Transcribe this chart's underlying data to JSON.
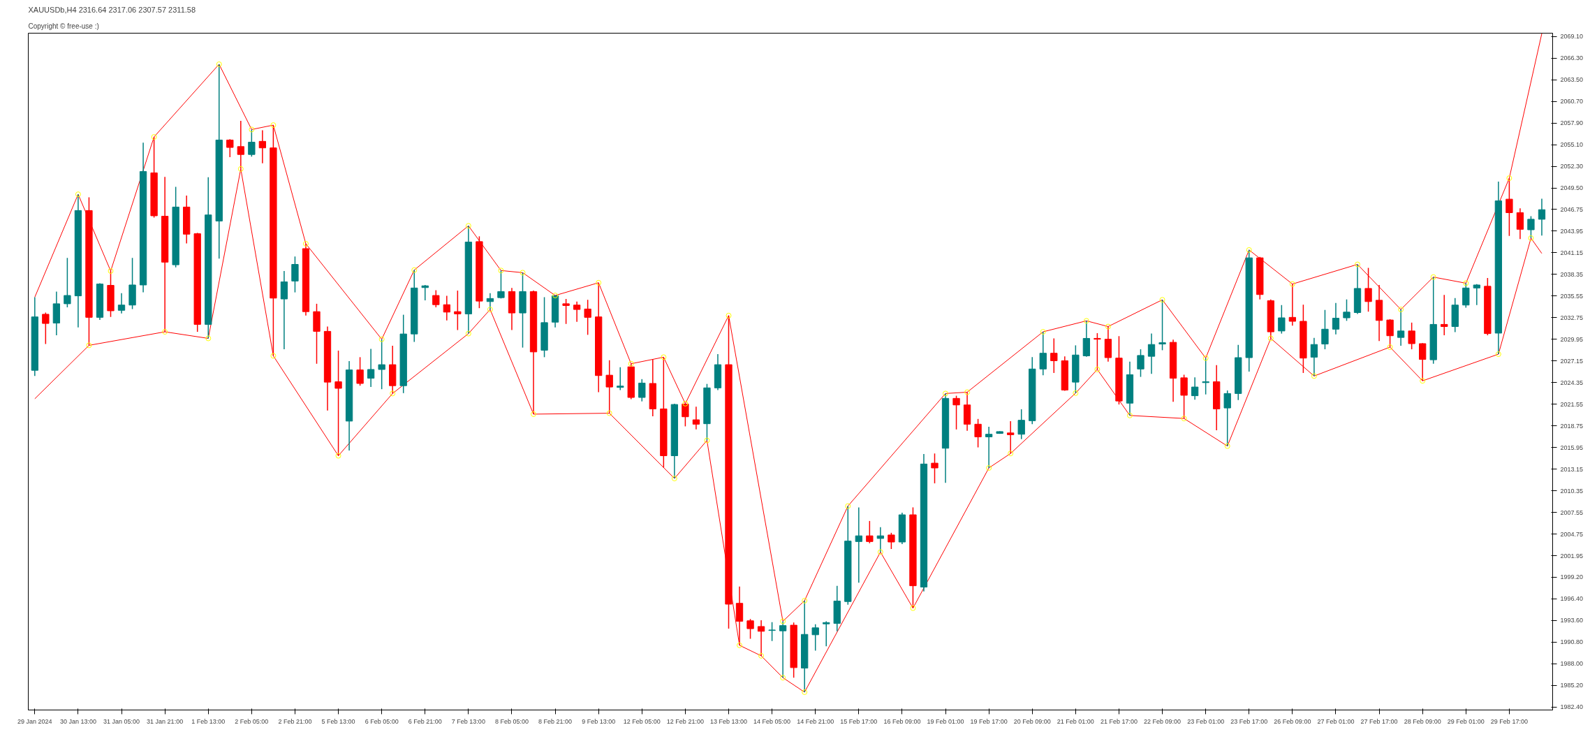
{
  "chart_data": {
    "type": "candlestick",
    "title": "XAUUSDb,H4 2316.64 2317.06 2307.57 2311.58",
    "subtitle": "Copyright © free-use :)",
    "categories": [
      "29 Jan 2024",
      null,
      null,
      null,
      "30 Jan 13:00",
      null,
      null,
      null,
      "31 Jan 05:00",
      null,
      null,
      null,
      "31 Jan 21:00",
      null,
      null,
      null,
      "1 Feb 13:00",
      null,
      null,
      null,
      "2 Feb 05:00",
      null,
      null,
      null,
      "2 Feb 21:00",
      null,
      null,
      null,
      "5 Feb 13:00",
      null,
      null,
      null,
      "6 Feb 05:00",
      null,
      null,
      null,
      "6 Feb 21:00",
      null,
      null,
      null,
      "7 Feb 13:00",
      null,
      null,
      null,
      "8 Feb 05:00",
      null,
      null,
      null,
      "8 Feb 21:00",
      null,
      null,
      null,
      "9 Feb 13:00",
      null,
      null,
      null,
      "12 Feb 05:00",
      null,
      null,
      null,
      "12 Feb 21:00",
      null,
      null,
      null,
      "13 Feb 13:00",
      null,
      null,
      null,
      "14 Feb 05:00",
      null,
      null,
      null,
      "14 Feb 21:00",
      null,
      null,
      null,
      "15 Feb 17:00",
      null,
      null,
      null,
      "16 Feb 09:00",
      null,
      null,
      null,
      "19 Feb 01:00",
      null,
      null,
      null,
      "19 Feb 17:00",
      null,
      null,
      null,
      "20 Feb 09:00",
      null,
      null,
      null,
      "21 Feb 01:00",
      null,
      null,
      null,
      "21 Feb 17:00",
      null,
      null,
      null,
      "22 Feb 09:00",
      null,
      null,
      null,
      "23 Feb 01:00",
      null,
      null,
      null,
      "23 Feb 17:00",
      null,
      null,
      null,
      "26 Feb 09:00",
      null,
      null,
      null,
      "27 Feb 01:00",
      null,
      null,
      null,
      "27 Feb 17:00",
      null,
      null,
      null,
      "28 Feb 09:00",
      null,
      null,
      null,
      "29 Feb 01:00",
      null,
      null,
      null,
      "29 Feb 17:00",
      null,
      null,
      null
    ],
    "ohlc": [
      [
        2025.94,
        2035.4,
        2025.2,
        2032.85
      ],
      [
        2033.19,
        2033.41,
        2029.34,
        2032.0
      ],
      [
        2032.05,
        2036.13,
        2030.47,
        2034.55
      ],
      [
        2034.55,
        2040.49,
        2034.09,
        2035.62
      ],
      [
        2035.57,
        2048.71,
        2031.49,
        2046.61
      ],
      [
        2046.61,
        2048.31,
        2029.17,
        2032.79
      ],
      [
        2032.79,
        2037.21,
        2032.45,
        2037.1
      ],
      [
        2036.93,
        2038.79,
        2032.85,
        2033.64
      ],
      [
        2033.7,
        2035.91,
        2033.3,
        2034.38
      ],
      [
        2034.38,
        2040.49,
        2033.87,
        2036.98
      ],
      [
        2036.98,
        2055.39,
        2036.02,
        2051.65
      ],
      [
        2051.48,
        2056.13,
        2045.7,
        2045.93
      ],
      [
        2045.87,
        2050.97,
        2030.92,
        2039.93
      ],
      [
        2039.59,
        2049.67,
        2039.25,
        2047.06
      ],
      [
        2047.06,
        2048.54,
        2042.36,
        2043.55
      ],
      [
        2043.61,
        2043.72,
        2030.92,
        2031.88
      ],
      [
        2031.88,
        2050.92,
        2030.07,
        2046.04
      ],
      [
        2045.25,
        2065.53,
        2040.38,
        2055.73
      ],
      [
        2055.73,
        2055.84,
        2053.52,
        2054.77
      ],
      [
        2054.88,
        2058.22,
        2051.99,
        2053.86
      ],
      [
        2053.86,
        2057.09,
        2053.58,
        2055.45
      ],
      [
        2055.56,
        2056.98,
        2052.73,
        2054.71
      ],
      [
        2054.71,
        2057.66,
        2027.81,
        2035.28
      ],
      [
        2035.17,
        2038.79,
        2028.66,
        2037.38
      ],
      [
        2037.49,
        2040.66,
        2036.02,
        2039.64
      ],
      [
        2041.68,
        2042.31,
        2033.02,
        2033.53
      ],
      [
        2033.53,
        2034.55,
        2026.79,
        2030.98
      ],
      [
        2030.98,
        2031.6,
        2020.73,
        2024.41
      ],
      [
        2024.46,
        2028.49,
        2014.89,
        2023.61
      ],
      [
        2019.37,
        2027.13,
        2015.57,
        2025.99
      ],
      [
        2025.99,
        2027.64,
        2023.95,
        2024.24
      ],
      [
        2024.92,
        2028.71,
        2023.78,
        2026.05
      ],
      [
        2026.05,
        2029.96,
        2023.5,
        2026.67
      ],
      [
        2026.67,
        2029.11,
        2022.94,
        2023.95
      ],
      [
        2023.95,
        2033.13,
        2022.99,
        2030.64
      ],
      [
        2030.64,
        2038.91,
        2029.62,
        2036.59
      ],
      [
        2036.64,
        2036.98,
        2035.0,
        2036.87
      ],
      [
        2035.62,
        2036.3,
        2034.09,
        2034.43
      ],
      [
        2034.43,
        2035.57,
        2032.39,
        2033.47
      ],
      [
        2033.53,
        2036.25,
        2031.15,
        2033.24
      ],
      [
        2033.24,
        2044.63,
        2030.69,
        2042.53
      ],
      [
        2042.59,
        2043.27,
        2033.98,
        2034.89
      ],
      [
        2034.83,
        2035.91,
        2033.81,
        2035.23
      ],
      [
        2035.34,
        2038.85,
        2035.23,
        2036.13
      ],
      [
        2036.13,
        2036.59,
        2031.15,
        2033.36
      ],
      [
        2033.36,
        2038.57,
        2028.88,
        2036.13
      ],
      [
        2036.13,
        2036.25,
        2020.27,
        2028.32
      ],
      [
        2028.54,
        2035.4,
        2027.64,
        2032.11
      ],
      [
        2032.17,
        2035.62,
        2031.49,
        2035.57
      ],
      [
        2034.55,
        2035.17,
        2031.94,
        2034.32
      ],
      [
        2034.38,
        2034.83,
        2032.22,
        2033.81
      ],
      [
        2033.87,
        2035.06,
        2030.53,
        2032.79
      ],
      [
        2032.85,
        2037.27,
        2023.11,
        2025.26
      ],
      [
        2025.31,
        2027.24,
        2020.39,
        2023.78
      ],
      [
        2023.73,
        2026.33,
        2023.39,
        2023.9
      ],
      [
        2026.39,
        2026.79,
        2022.2,
        2022.43
      ],
      [
        2022.43,
        2024.8,
        2021.92,
        2024.29
      ],
      [
        2024.24,
        2027.35,
        2019.99,
        2020.95
      ],
      [
        2020.95,
        2027.64,
        2013.36,
        2014.89
      ],
      [
        2014.89,
        2021.63,
        2011.95,
        2021.52
      ],
      [
        2021.58,
        2021.63,
        2018.69,
        2019.93
      ],
      [
        2019.54,
        2021.24,
        2018.29,
        2018.97
      ],
      [
        2019.03,
        2024.18,
        2016.87,
        2023.67
      ],
      [
        2023.67,
        2028.03,
        2023.39,
        2026.67
      ],
      [
        2026.67,
        2033.02,
        1992.52,
        1995.69
      ],
      [
        1995.8,
        1997.96,
        1990.37,
        1993.48
      ],
      [
        1993.54,
        1993.77,
        1991.22,
        1992.52
      ],
      [
        1992.8,
        1993.6,
        1989.01,
        1992.18
      ],
      [
        1992.29,
        1993.37,
        1990.93,
        1992.35
      ],
      [
        1992.24,
        1993.48,
        1986.18,
        1992.92
      ],
      [
        1992.97,
        1993.31,
        1986.18,
        1987.48
      ],
      [
        1987.42,
        1996.14,
        1984.31,
        1991.78
      ],
      [
        1991.73,
        1993.09,
        1989.69,
        1992.63
      ],
      [
        1993.14,
        1993.48,
        1990.25,
        1993.31
      ],
      [
        1993.2,
        1998.07,
        1992.18,
        1996.09
      ],
      [
        1996.03,
        2008.38,
        1995.63,
        2003.85
      ],
      [
        2003.79,
        2008.21,
        1998.47,
        2004.53
      ],
      [
        2004.53,
        2006.45,
        2003.56,
        2003.79
      ],
      [
        2004.19,
        2005.66,
        2002.43,
        2004.53
      ],
      [
        2004.64,
        2004.92,
        2002.83,
        2003.73
      ],
      [
        2003.73,
        2007.53,
        2003.45,
        2007.25
      ],
      [
        2007.25,
        2008.21,
        1995.18,
        1998.07
      ],
      [
        1997.9,
        2015.12,
        1997.33,
        2013.82
      ],
      [
        2013.93,
        2015.18,
        2011.32,
        2013.31
      ],
      [
        2015.86,
        2022.94,
        2011.38,
        2022.31
      ],
      [
        2022.31,
        2022.65,
        2018.29,
        2021.46
      ],
      [
        2021.46,
        2023.11,
        2018.12,
        2018.97
      ],
      [
        2018.97,
        2019.65,
        2015.97,
        2017.33
      ],
      [
        2017.33,
        2018.63,
        2013.31,
        2017.67
      ],
      [
        2017.78,
        2018.06,
        2017.72,
        2018.01
      ],
      [
        2017.84,
        2019.37,
        2015.18,
        2017.61
      ],
      [
        2017.67,
        2020.9,
        2017.04,
        2019.48
      ],
      [
        2019.42,
        2027.64,
        2018.97,
        2026.11
      ],
      [
        2026.11,
        2030.92,
        2025.31,
        2028.15
      ],
      [
        2028.15,
        2030.07,
        2025.6,
        2027.18
      ],
      [
        2027.18,
        2027.75,
        2023.28,
        2023.39
      ],
      [
        2024.41,
        2029.17,
        2022.99,
        2027.92
      ],
      [
        2027.81,
        2032.34,
        2027.69,
        2030.07
      ],
      [
        2030.07,
        2030.75,
        2026.05,
        2029.96
      ],
      [
        2029.96,
        2031.6,
        2027.07,
        2027.58
      ],
      [
        2027.52,
        2030.36,
        2021.52,
        2021.97
      ],
      [
        2021.69,
        2027.07,
        2020.1,
        2025.37
      ],
      [
        2026.11,
        2028.66,
        2025.09,
        2027.86
      ],
      [
        2027.75,
        2030.69,
        2025.48,
        2029.28
      ],
      [
        2029.34,
        2035.06,
        2028.54,
        2029.51
      ],
      [
        2029.56,
        2029.9,
        2021.86,
        2024.92
      ],
      [
        2024.97,
        2025.37,
        2019.71,
        2022.71
      ],
      [
        2022.65,
        2025.03,
        2022.14,
        2023.78
      ],
      [
        2024.35,
        2027.52,
        2022.82,
        2024.46
      ],
      [
        2024.46,
        2026.62,
        2018.18,
        2020.95
      ],
      [
        2021.07,
        2023.33,
        2016.14,
        2022.94
      ],
      [
        2022.94,
        2029.22,
        2022.09,
        2027.58
      ],
      [
        2027.58,
        2041.51,
        2025.77,
        2040.49
      ],
      [
        2040.49,
        2040.61,
        2035.11,
        2035.74
      ],
      [
        2034.94,
        2035.11,
        2030.07,
        2030.92
      ],
      [
        2031.03,
        2034.38,
        2030.69,
        2032.73
      ],
      [
        2032.79,
        2037.1,
        2031.71,
        2032.28
      ],
      [
        2032.28,
        2034.43,
        2025.6,
        2027.52
      ],
      [
        2027.64,
        2030.13,
        2025.2,
        2029.28
      ],
      [
        2029.34,
        2033.75,
        2028.66,
        2031.26
      ],
      [
        2031.26,
        2034.66,
        2030.58,
        2032.68
      ],
      [
        2032.73,
        2035.11,
        2032.34,
        2033.47
      ],
      [
        2033.41,
        2039.64,
        2033.24,
        2036.53
      ],
      [
        2036.53,
        2039.19,
        2033.53,
        2034.83
      ],
      [
        2035.0,
        2036.98,
        2029.73,
        2032.39
      ],
      [
        2032.45,
        2032.56,
        2028.94,
        2030.41
      ],
      [
        2030.19,
        2033.81,
        2029.11,
        2031.03
      ],
      [
        2031.03,
        2032.11,
        2028.66,
        2029.39
      ],
      [
        2029.39,
        2029.45,
        2024.58,
        2027.35
      ],
      [
        2027.3,
        2038.0,
        2026.79,
        2031.88
      ],
      [
        2031.88,
        2035.68,
        2030.47,
        2031.6
      ],
      [
        2031.6,
        2035.28,
        2030.87,
        2034.38
      ],
      [
        2034.38,
        2037.21,
        2034.04,
        2036.59
      ],
      [
        2036.59,
        2037.1,
        2034.38,
        2036.98
      ],
      [
        2036.81,
        2037.89,
        2030.47,
        2030.69
      ],
      [
        2030.75,
        2050.35,
        2028.03,
        2047.86
      ],
      [
        2048.08,
        2050.8,
        2043.33,
        2046.33
      ],
      [
        2046.33,
        2046.89,
        2042.93,
        2044.18
      ],
      [
        2044.12,
        2045.87,
        2043.04,
        2045.48
      ],
      [
        2045.48,
        2048.14,
        2043.38,
        2046.72
      ]
    ],
    "colors": [
      "#008080",
      "#ff0000",
      "#008080",
      "#008080",
      "#008080",
      "#ff0000",
      "#008080",
      "#ff0000",
      "#008080",
      "#008080",
      "#008080",
      "#ff0000",
      "#ff0000",
      "#008080",
      "#ff0000",
      "#ff0000",
      "#008080",
      "#008080",
      "#ff0000",
      "#ff0000",
      "#008080",
      "#ff0000",
      "#ff0000",
      "#008080",
      "#008080",
      "#ff0000",
      "#ff0000",
      "#ff0000",
      "#ff0000",
      "#008080",
      "#ff0000",
      "#008080",
      "#008080",
      "#ff0000",
      "#008080",
      "#008080",
      "#008080",
      "#ff0000",
      "#ff0000",
      "#ff0000",
      "#008080",
      "#ff0000",
      "#008080",
      "#008080",
      "#ff0000",
      "#008080",
      "#ff0000",
      "#008080",
      "#008080",
      "#ff0000",
      "#ff0000",
      "#ff0000",
      "#ff0000",
      "#ff0000",
      "#008080",
      "#ff0000",
      "#008080",
      "#ff0000",
      "#ff0000",
      "#008080",
      "#ff0000",
      "#ff0000",
      "#008080",
      "#008080",
      "#ff0000",
      "#ff0000",
      "#ff0000",
      "#ff0000",
      "#008080",
      "#008080",
      "#ff0000",
      "#008080",
      "#008080",
      "#008080",
      "#008080",
      "#008080",
      "#008080",
      "#ff0000",
      "#008080",
      "#ff0000",
      "#008080",
      "#ff0000",
      "#008080",
      "#ff0000",
      "#008080",
      "#ff0000",
      "#ff0000",
      "#ff0000",
      "#008080",
      "#008080",
      "#ff0000",
      "#008080",
      "#008080",
      "#008080",
      "#ff0000",
      "#ff0000",
      "#008080",
      "#008080",
      "#ff0000",
      "#ff0000",
      "#ff0000",
      "#008080",
      "#008080",
      "#008080",
      "#008080",
      "#ff0000",
      "#ff0000",
      "#008080",
      "#008080",
      "#ff0000",
      "#008080",
      "#008080",
      "#008080",
      "#ff0000",
      "#ff0000",
      "#008080",
      "#ff0000",
      "#ff0000",
      "#008080",
      "#008080",
      "#008080",
      "#008080",
      "#008080",
      "#ff0000",
      "#ff0000",
      "#ff0000",
      "#008080",
      "#ff0000",
      "#ff0000",
      "#008080",
      "#ff0000",
      "#008080",
      "#008080",
      "#008080",
      "#ff0000",
      "#008080",
      "#ff0000",
      "#ff0000",
      "#008080",
      "#008080"
    ],
    "series": [
      {
        "type": "line",
        "color": "#ff0000",
        "line_style": "solid",
        "values": [
          2035.4,
          null,
          null,
          null,
          2048.71,
          null,
          null,
          2038.79,
          null,
          null,
          null,
          2056.13,
          null,
          null,
          null,
          null,
          null,
          2065.53,
          null,
          null,
          2057.09,
          null,
          2057.66,
          null,
          null,
          2042.31,
          null,
          null,
          null,
          null,
          null,
          null,
          2029.96,
          null,
          null,
          2038.91,
          null,
          null,
          null,
          null,
          2044.63,
          null,
          null,
          2038.85,
          null,
          2038.57,
          null,
          null,
          2035.62,
          null,
          null,
          null,
          2037.27,
          null,
          null,
          2026.79,
          null,
          null,
          2027.64,
          null,
          2021.63,
          null,
          null,
          null,
          2033.02,
          null,
          null,
          null,
          null,
          1993.48,
          null,
          1996.14,
          null,
          null,
          null,
          2008.38,
          null,
          null,
          null,
          null,
          null,
          null,
          null,
          null,
          2022.94,
          null,
          2023.11,
          null,
          null,
          null,
          null,
          null,
          null,
          2030.92,
          null,
          null,
          null,
          2032.34,
          null,
          2031.6,
          null,
          null,
          null,
          null,
          2035.06,
          null,
          null,
          null,
          2027.52,
          null,
          null,
          null,
          2041.51,
          null,
          null,
          null,
          2037.1,
          null,
          null,
          null,
          null,
          null,
          2039.64,
          null,
          null,
          null,
          2033.81,
          null,
          null,
          2038.0,
          null,
          null,
          2037.21,
          null,
          null,
          null,
          2050.8,
          null,
          null,
          2069.5
        ]
      },
      {
        "type": "line",
        "color": "#ff0000",
        "line_style": "solid",
        "values": [
          2022.26,
          null,
          null,
          null,
          null,
          2029.17,
          null,
          null,
          null,
          null,
          null,
          null,
          2030.92,
          null,
          null,
          null,
          2030.07,
          null,
          null,
          2051.99,
          null,
          null,
          2027.81,
          null,
          null,
          null,
          null,
          null,
          2014.89,
          null,
          null,
          null,
          null,
          2022.94,
          null,
          null,
          null,
          null,
          null,
          null,
          2030.69,
          null,
          2033.81,
          null,
          null,
          null,
          2020.27,
          null,
          null,
          null,
          null,
          null,
          null,
          2020.39,
          null,
          null,
          null,
          null,
          null,
          2011.95,
          null,
          null,
          2016.87,
          null,
          null,
          1990.37,
          null,
          1989.01,
          null,
          1986.18,
          null,
          1984.31,
          null,
          null,
          null,
          null,
          null,
          null,
          2002.43,
          null,
          null,
          1995.18,
          null,
          null,
          null,
          null,
          null,
          null,
          2013.31,
          null,
          2015.18,
          null,
          null,
          null,
          null,
          null,
          2022.99,
          null,
          2026.05,
          null,
          null,
          2020.1,
          null,
          null,
          null,
          null,
          2019.71,
          null,
          null,
          null,
          2016.14,
          null,
          null,
          null,
          2030.07,
          null,
          null,
          null,
          2025.2,
          null,
          null,
          null,
          null,
          null,
          null,
          2028.94,
          null,
          null,
          2024.58,
          null,
          null,
          null,
          null,
          null,
          null,
          2028.03,
          null,
          null,
          2043.04,
          2041.06
        ]
      },
      {
        "type": "scatter",
        "color": "#ffff00",
        "marker": "circle",
        "values": [
          null,
          null,
          null,
          null,
          2048.71,
          null,
          null,
          2038.79,
          null,
          null,
          null,
          2056.13,
          null,
          null,
          null,
          null,
          null,
          2065.53,
          null,
          null,
          2057.09,
          null,
          2057.66,
          null,
          null,
          2042.31,
          null,
          null,
          null,
          null,
          null,
          null,
          2029.96,
          null,
          null,
          2038.91,
          null,
          null,
          null,
          null,
          2044.63,
          null,
          null,
          2038.85,
          null,
          2038.57,
          null,
          null,
          2035.62,
          null,
          null,
          null,
          2037.27,
          null,
          null,
          2026.79,
          null,
          null,
          2027.64,
          null,
          2021.63,
          null,
          null,
          null,
          2033.02,
          null,
          null,
          null,
          null,
          1993.48,
          null,
          1996.14,
          null,
          null,
          null,
          2008.38,
          null,
          null,
          null,
          null,
          null,
          null,
          null,
          null,
          2022.94,
          null,
          2023.11,
          null,
          null,
          null,
          null,
          null,
          null,
          2030.92,
          null,
          null,
          null,
          2032.34,
          null,
          2031.6,
          null,
          null,
          null,
          null,
          2035.06,
          null,
          null,
          null,
          2027.52,
          null,
          null,
          null,
          2041.51,
          null,
          null,
          null,
          2037.1,
          null,
          null,
          null,
          null,
          null,
          2039.64,
          null,
          null,
          null,
          2033.81,
          null,
          null,
          2038.0,
          null,
          null,
          2037.21,
          null,
          null,
          null,
          2050.8,
          null,
          null,
          null
        ]
      },
      {
        "type": "scatter",
        "color": "#ffff00",
        "marker": "circle",
        "values": [
          null,
          null,
          null,
          null,
          null,
          2029.17,
          null,
          null,
          null,
          null,
          null,
          null,
          2030.92,
          null,
          null,
          null,
          2030.07,
          null,
          null,
          2051.99,
          null,
          null,
          2027.81,
          null,
          null,
          null,
          null,
          null,
          2014.89,
          null,
          null,
          null,
          null,
          2022.94,
          null,
          null,
          null,
          null,
          null,
          null,
          2030.69,
          null,
          2033.81,
          null,
          null,
          null,
          2020.27,
          null,
          null,
          null,
          null,
          null,
          null,
          2020.39,
          null,
          null,
          null,
          null,
          null,
          2011.95,
          null,
          null,
          2016.87,
          null,
          null,
          1990.37,
          null,
          1989.01,
          null,
          1986.18,
          null,
          1984.31,
          null,
          null,
          null,
          null,
          null,
          null,
          2002.43,
          null,
          null,
          1995.18,
          null,
          null,
          null,
          null,
          null,
          null,
          2013.31,
          null,
          2015.18,
          null,
          null,
          null,
          null,
          null,
          2022.99,
          null,
          2026.05,
          null,
          null,
          2020.1,
          null,
          null,
          null,
          null,
          2019.71,
          null,
          null,
          null,
          2016.14,
          null,
          null,
          null,
          2030.07,
          null,
          null,
          null,
          2025.2,
          null,
          null,
          null,
          null,
          null,
          null,
          2028.94,
          null,
          null,
          2024.58,
          null,
          null,
          null,
          null,
          null,
          null,
          2028.03,
          null,
          null,
          2043.04,
          null
        ]
      }
    ],
    "ylim": [
      1982.0,
      2069.55
    ],
    "yticks": [
      {
        "value": 1982.4,
        "label": "1982.40"
      },
      {
        "value": 1985.2,
        "label": "1985.20"
      },
      {
        "value": 1988.0,
        "label": "1988.00"
      },
      {
        "value": 1990.8,
        "label": "1990.80"
      },
      {
        "value": 1993.6,
        "label": "1993.60"
      },
      {
        "value": 1996.4,
        "label": "1996.40"
      },
      {
        "value": 1999.2,
        "label": "1999.20"
      },
      {
        "value": 2001.95,
        "label": "2001.95"
      },
      {
        "value": 2004.75,
        "label": "2004.75"
      },
      {
        "value": 2007.55,
        "label": "2007.55"
      },
      {
        "value": 2010.35,
        "label": "2010.35"
      },
      {
        "value": 2013.15,
        "label": "2013.15"
      },
      {
        "value": 2015.95,
        "label": "2015.95"
      },
      {
        "value": 2018.75,
        "label": "2018.75"
      },
      {
        "value": 2021.55,
        "label": "2021.55"
      },
      {
        "value": 2024.35,
        "label": "2024.35"
      },
      {
        "value": 2027.15,
        "label": "2027.15"
      },
      {
        "value": 2029.95,
        "label": "2029.95"
      },
      {
        "value": 2032.75,
        "label": "2032.75"
      },
      {
        "value": 2035.55,
        "label": "2035.55"
      },
      {
        "value": 2038.35,
        "label": "2038.35"
      },
      {
        "value": 2041.15,
        "label": "2041.15"
      },
      {
        "value": 2043.95,
        "label": "2043.95"
      },
      {
        "value": 2046.75,
        "label": "2046.75"
      },
      {
        "value": 2049.5,
        "label": "2049.50"
      },
      {
        "value": 2052.3,
        "label": "2052.30"
      },
      {
        "value": 2055.1,
        "label": "2055.10"
      },
      {
        "value": 2057.9,
        "label": "2057.90"
      },
      {
        "value": 2060.7,
        "label": "2060.70"
      },
      {
        "value": 2063.5,
        "label": "2063.50"
      },
      {
        "value": 2066.3,
        "label": "2066.30"
      },
      {
        "value": 2069.1,
        "label": "2069.10"
      }
    ]
  }
}
